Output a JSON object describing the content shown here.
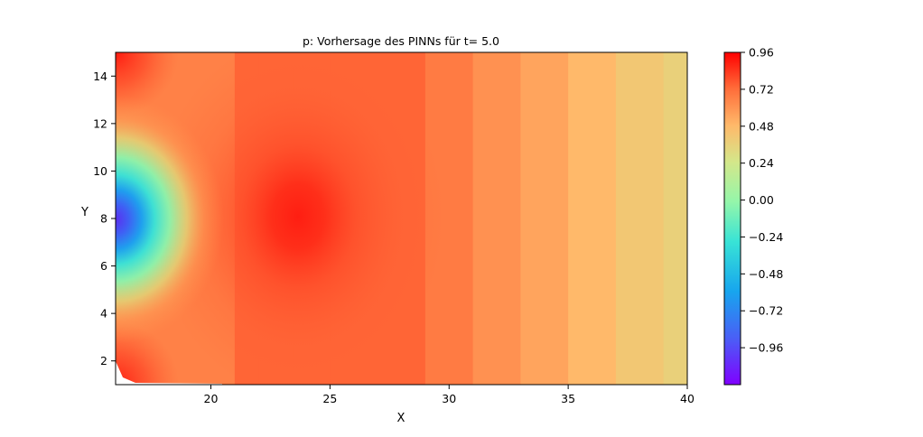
{
  "chart_data": {
    "type": "heatmap",
    "subtype": "filled-contour",
    "title": "p: Vorhersage des PINNs für t= 5.0",
    "xlabel": "X",
    "ylabel": "Y",
    "xlim": [
      16,
      40
    ],
    "ylim": [
      1,
      15
    ],
    "xticks": [
      20,
      25,
      30,
      35,
      40
    ],
    "yticks": [
      2,
      4,
      6,
      8,
      10,
      12,
      14
    ],
    "colormap": "rainbow",
    "colorbar": {
      "vmin": -1.2,
      "vmax": 0.96,
      "ticks": [
        "0.96",
        "0.72",
        "0.48",
        "0.24",
        "0.00",
        "−0.24",
        "−0.48",
        "−0.72",
        "−0.96"
      ],
      "tick_values": [
        0.96,
        0.72,
        0.48,
        0.24,
        0.0,
        -0.24,
        -0.48,
        -0.72,
        -0.96
      ]
    },
    "field_features": {
      "left_edge_minimum": {
        "x": 16,
        "y": 8,
        "value": -1.05
      },
      "high_pressure_center": {
        "x": 23.5,
        "y": 8.1,
        "value": 0.92
      },
      "top_left_corner_max": {
        "x": 16,
        "y": 15,
        "value": 0.95
      },
      "bottom_left_corner_max": {
        "x": 16,
        "y": 1,
        "value": 0.92
      },
      "right_edge_value": {
        "x": 40,
        "y": 8,
        "value": 0.35
      }
    },
    "x_profile_y8": [
      {
        "x": 16,
        "value": -1.05
      },
      {
        "x": 17,
        "value": -0.7
      },
      {
        "x": 18,
        "value": -0.1
      },
      {
        "x": 19,
        "value": 0.4
      },
      {
        "x": 20,
        "value": 0.62
      },
      {
        "x": 21,
        "value": 0.7
      },
      {
        "x": 22,
        "value": 0.8
      },
      {
        "x": 23.5,
        "value": 0.92
      },
      {
        "x": 25,
        "value": 0.86
      },
      {
        "x": 27,
        "value": 0.78
      },
      {
        "x": 29,
        "value": 0.72
      },
      {
        "x": 31,
        "value": 0.64
      },
      {
        "x": 33,
        "value": 0.58
      },
      {
        "x": 35,
        "value": 0.52
      },
      {
        "x": 37,
        "value": 0.45
      },
      {
        "x": 39,
        "value": 0.38
      },
      {
        "x": 40,
        "value": 0.35
      }
    ],
    "grid": false,
    "legend": "colorbar-right"
  }
}
